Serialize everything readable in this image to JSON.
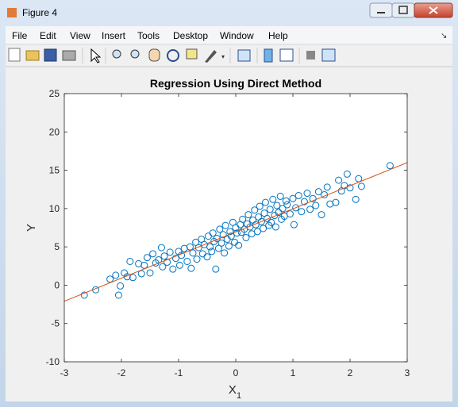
{
  "window": {
    "title": "Figure 4"
  },
  "menu": [
    "File",
    "Edit",
    "View",
    "Insert",
    "Tools",
    "Desktop",
    "Window",
    "Help"
  ],
  "chart_data": {
    "type": "scatter",
    "title": "Regression Using Direct Method",
    "xlabel": "X",
    "xlabel_subscript": "1",
    "ylabel": "Y",
    "color": "#0072bd",
    "x": [
      -2.65,
      -2.45,
      -2.2,
      -2.1,
      -2.05,
      -2.02,
      -1.95,
      -1.9,
      -1.85,
      -1.8,
      -1.7,
      -1.65,
      -1.6,
      -1.55,
      -1.5,
      -1.45,
      -1.4,
      -1.35,
      -1.3,
      -1.28,
      -1.25,
      -1.2,
      -1.15,
      -1.1,
      -1.05,
      -1.0,
      -0.98,
      -0.95,
      -0.9,
      -0.85,
      -0.8,
      -0.78,
      -0.75,
      -0.7,
      -0.68,
      -0.65,
      -0.6,
      -0.58,
      -0.55,
      -0.5,
      -0.48,
      -0.45,
      -0.42,
      -0.4,
      -0.38,
      -0.35,
      -0.33,
      -0.3,
      -0.28,
      -0.25,
      -0.22,
      -0.2,
      -0.18,
      -0.15,
      -0.12,
      -0.1,
      -0.08,
      -0.05,
      -0.02,
      0.0,
      0.02,
      0.05,
      0.08,
      0.1,
      0.12,
      0.15,
      0.18,
      0.2,
      0.22,
      0.25,
      0.28,
      0.3,
      0.33,
      0.35,
      0.38,
      0.4,
      0.42,
      0.45,
      0.48,
      0.5,
      0.52,
      0.55,
      0.58,
      0.6,
      0.62,
      0.65,
      0.68,
      0.7,
      0.72,
      0.75,
      0.78,
      0.8,
      0.82,
      0.85,
      0.88,
      0.9,
      0.95,
      1.0,
      1.02,
      1.05,
      1.1,
      1.15,
      1.2,
      1.25,
      1.3,
      1.35,
      1.4,
      1.45,
      1.5,
      1.55,
      1.6,
      1.65,
      1.75,
      1.8,
      1.85,
      1.9,
      1.95,
      2.0,
      2.1,
      2.15,
      2.2,
      2.7
    ],
    "values": [
      -1.3,
      -0.6,
      0.8,
      1.3,
      -1.3,
      -0.1,
      1.6,
      1.1,
      3.1,
      1.0,
      2.8,
      1.5,
      2.6,
      3.6,
      1.6,
      4.1,
      2.9,
      3.3,
      4.9,
      2.4,
      3.8,
      3.0,
      4.3,
      2.1,
      3.5,
      4.4,
      2.6,
      3.9,
      4.8,
      3.1,
      5.0,
      2.2,
      4.2,
      5.6,
      3.4,
      4.9,
      6.0,
      4.1,
      5.3,
      3.7,
      6.4,
      5.0,
      4.4,
      6.8,
      5.7,
      2.1,
      6.1,
      4.8,
      7.3,
      5.5,
      6.6,
      4.2,
      7.8,
      6.0,
      5.1,
      7.0,
      6.4,
      8.2,
      5.6,
      7.5,
      6.8,
      5.2,
      7.9,
      6.9,
      8.6,
      7.3,
      6.2,
      8.0,
      9.2,
      7.6,
      6.7,
      8.5,
      9.8,
      7.9,
      7.0,
      8.9,
      10.3,
      8.3,
      7.4,
      9.4,
      10.8,
      8.7,
      7.8,
      9.9,
      8.2,
      11.2,
      9.1,
      7.6,
      10.4,
      9.5,
      11.6,
      8.6,
      10.0,
      9.0,
      11.0,
      10.5,
      9.3,
      11.3,
      7.9,
      10.1,
      11.7,
      9.6,
      10.9,
      12.0,
      9.9,
      11.3,
      10.4,
      12.2,
      9.2,
      11.8,
      12.8,
      10.6,
      10.8,
      13.7,
      12.3,
      13.0,
      14.5,
      12.7,
      11.2,
      13.9,
      12.9,
      15.6
    ],
    "fit_line": {
      "x": [
        -3,
        3
      ],
      "values": [
        -2.1,
        16
      ],
      "color": "#d95319"
    },
    "xlim": [
      -3,
      3
    ],
    "ylim": [
      -10,
      25
    ],
    "xticks": [
      -3,
      -2,
      -1,
      0,
      1,
      2,
      3
    ],
    "yticks": [
      -10,
      -5,
      0,
      5,
      10,
      15,
      20,
      25
    ],
    "grid": false
  }
}
